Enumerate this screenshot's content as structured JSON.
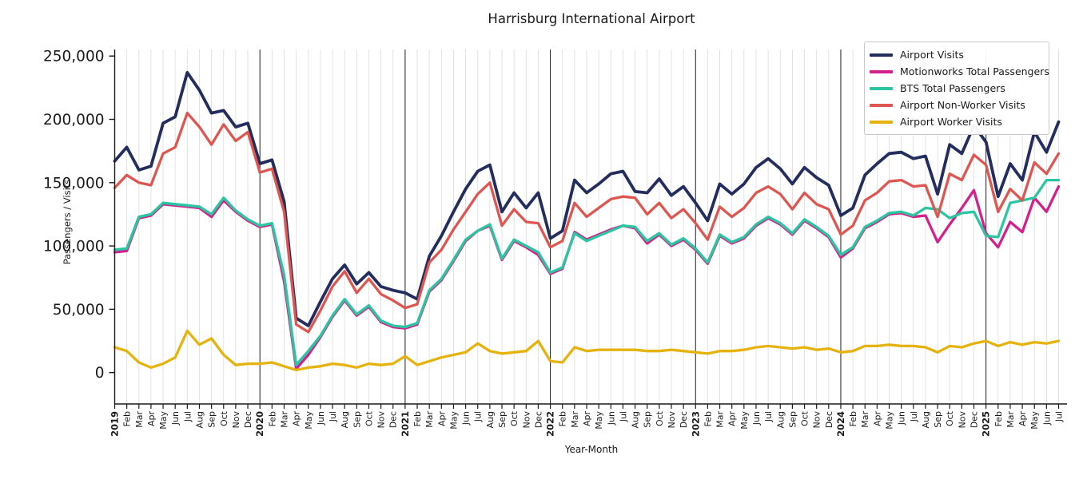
{
  "title": "Harrisburg International Airport",
  "chart_data": {
    "type": "line",
    "title": "Harrisburg International Airport",
    "xlabel": "Year-Month",
    "ylabel": "Passengers / Visits",
    "legend_position": "upper right",
    "grid": "vertical gridline per month; darker vertical line at each January",
    "y_ticks": [
      0,
      50000,
      100000,
      150000,
      200000,
      250000
    ],
    "ylim": [
      -25000,
      255000
    ],
    "x_labels": [
      "2019",
      "Feb",
      "Mar",
      "Apr",
      "May",
      "Jun",
      "Jul",
      "Aug",
      "Sep",
      "Oct",
      "Nov",
      "Dec",
      "2020",
      "Feb",
      "Mar",
      "Apr",
      "May",
      "Jun",
      "Jul",
      "Aug",
      "Sep",
      "Oct",
      "Nov",
      "Dec",
      "2021",
      "Feb",
      "Mar",
      "Apr",
      "May",
      "Jun",
      "Jul",
      "Aug",
      "Sep",
      "Oct",
      "Nov",
      "Dec",
      "2022",
      "Feb",
      "Mar",
      "Apr",
      "May",
      "Jun",
      "Jul",
      "Aug",
      "Sep",
      "Oct",
      "Nov",
      "Dec",
      "2023",
      "Feb",
      "Mar",
      "Apr",
      "May",
      "Jun",
      "Jul",
      "Aug",
      "Sep",
      "Oct",
      "Nov",
      "Dec",
      "2024",
      "Feb",
      "Mar",
      "Apr",
      "May",
      "Jun",
      "Jul",
      "Aug",
      "Sep",
      "Oct",
      "Nov",
      "Dec",
      "2025",
      "Feb",
      "Mar",
      "Apr",
      "May",
      "Jun",
      "Jul"
    ],
    "series": [
      {
        "name": "Airport Visits",
        "color": "#232d5e",
        "values": [
          167000,
          178000,
          160000,
          163000,
          197000,
          202000,
          237000,
          223000,
          205000,
          207000,
          194000,
          197000,
          165000,
          168000,
          135000,
          43000,
          37000,
          56000,
          74000,
          85000,
          70000,
          79000,
          68000,
          65000,
          63000,
          58000,
          92000,
          108000,
          127000,
          145000,
          159000,
          164000,
          127000,
          142000,
          130000,
          142000,
          106000,
          112000,
          152000,
          142000,
          149000,
          157000,
          159000,
          143000,
          142000,
          153000,
          140000,
          147000,
          134000,
          120000,
          149000,
          141000,
          149000,
          162000,
          169000,
          161000,
          149000,
          162000,
          154000,
          148000,
          124000,
          130000,
          156000,
          165000,
          173000,
          174000,
          169000,
          171000,
          141000,
          180000,
          173000,
          195000,
          182000,
          139000,
          165000,
          152000,
          190000,
          174000,
          198000
        ]
      },
      {
        "name": "Motionworks Total Passengers",
        "color": "#d4208c",
        "values": [
          95000,
          96000,
          122000,
          124000,
          133000,
          132000,
          131000,
          130000,
          123000,
          136000,
          127000,
          120000,
          115000,
          117000,
          72000,
          3000,
          14000,
          28000,
          44000,
          57000,
          45000,
          52000,
          40000,
          36000,
          35000,
          38000,
          64000,
          73000,
          88000,
          104000,
          112000,
          116000,
          89000,
          104000,
          99000,
          93000,
          78000,
          82000,
          111000,
          105000,
          109000,
          113000,
          116000,
          114000,
          102000,
          109000,
          100000,
          105000,
          97000,
          86000,
          108000,
          102000,
          106000,
          116000,
          122000,
          117000,
          109000,
          120000,
          114000,
          107000,
          91000,
          98000,
          114000,
          119000,
          125000,
          126000,
          123000,
          124000,
          103000,
          117000,
          130000,
          144000,
          110000,
          99000,
          119000,
          111000,
          138000,
          127000,
          147000
        ]
      },
      {
        "name": "BTS Total Passengers",
        "color": "#2bc5a2",
        "values": [
          97000,
          98000,
          123000,
          125000,
          134000,
          133000,
          132000,
          131000,
          125000,
          138000,
          128000,
          121000,
          116000,
          118000,
          77000,
          6000,
          17000,
          29000,
          45000,
          58000,
          46000,
          53000,
          41000,
          37000,
          36000,
          39000,
          65000,
          74000,
          89000,
          105000,
          112000,
          117000,
          90000,
          105000,
          100000,
          95000,
          79000,
          83000,
          110000,
          104000,
          108000,
          112000,
          116000,
          115000,
          104000,
          110000,
          101000,
          106000,
          98000,
          87000,
          109000,
          103000,
          107000,
          117000,
          123000,
          118000,
          110000,
          121000,
          115000,
          108000,
          93000,
          99000,
          115000,
          120000,
          126000,
          127000,
          124000,
          130000,
          129000,
          122000,
          126000,
          127000,
          108000,
          107000,
          134000,
          136000,
          138000,
          152000,
          152000
        ]
      },
      {
        "name": "Airport Non-Worker Visits",
        "color": "#df5550",
        "values": [
          146000,
          156000,
          150000,
          148000,
          173000,
          178000,
          205000,
          194000,
          180000,
          196000,
          183000,
          190000,
          158000,
          161000,
          127000,
          38000,
          32000,
          49000,
          68000,
          80000,
          63000,
          74000,
          62000,
          57000,
          51000,
          54000,
          87000,
          97000,
          113000,
          127000,
          141000,
          150000,
          116000,
          129000,
          119000,
          118000,
          99000,
          104000,
          134000,
          123000,
          130000,
          137000,
          139000,
          138000,
          125000,
          134000,
          122000,
          129000,
          118000,
          105000,
          131000,
          123000,
          130000,
          142000,
          147000,
          141000,
          129000,
          142000,
          133000,
          129000,
          109000,
          116000,
          136000,
          142000,
          151000,
          152000,
          147000,
          148000,
          123000,
          157000,
          152000,
          172000,
          164000,
          127000,
          145000,
          136000,
          166000,
          157000,
          173000
        ]
      },
      {
        "name": "Airport Worker Visits",
        "color": "#e6b30e",
        "values": [
          20000,
          17000,
          8000,
          4000,
          7000,
          12000,
          33000,
          22000,
          27000,
          14000,
          6000,
          7000,
          7000,
          8000,
          5000,
          2000,
          4000,
          5000,
          7000,
          6000,
          4000,
          7000,
          6000,
          7000,
          13000,
          6000,
          9000,
          12000,
          14000,
          16000,
          23000,
          17000,
          15000,
          16000,
          17000,
          25000,
          9000,
          8000,
          20000,
          17000,
          18000,
          18000,
          18000,
          18000,
          17000,
          17000,
          18000,
          17000,
          16000,
          15000,
          17000,
          17000,
          18000,
          20000,
          21000,
          20000,
          19000,
          20000,
          18000,
          19000,
          16000,
          17000,
          21000,
          21000,
          22000,
          21000,
          21000,
          20000,
          16000,
          21000,
          20000,
          23000,
          25000,
          21000,
          24000,
          22000,
          24000,
          23000,
          25000
        ]
      }
    ]
  }
}
